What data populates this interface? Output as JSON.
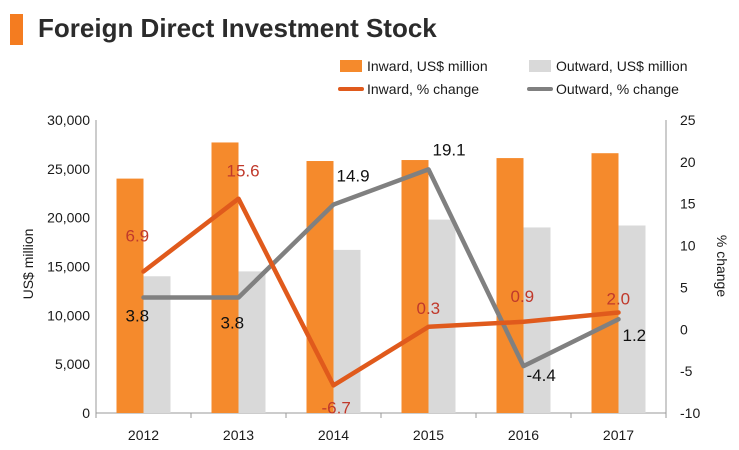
{
  "header": {
    "title": "Foreign Direct Investment Stock",
    "accent_color": "#f47c20"
  },
  "colors": {
    "inward_bar": "#f58a2c",
    "outward_bar": "#d9d9d9",
    "inward_line": "#e05a1c",
    "outward_line": "#808080",
    "inward_label": "#c0392b",
    "outward_label": "#111111"
  },
  "chart_data": {
    "type": "bar",
    "categories": [
      "2012",
      "2013",
      "2014",
      "2015",
      "2016",
      "2017"
    ],
    "series": [
      {
        "name": "Inward, US$ million",
        "kind": "bar",
        "axis": "left",
        "values": [
          24000,
          27700,
          25800,
          25900,
          26100,
          26600
        ]
      },
      {
        "name": "Outward, US$ million",
        "kind": "bar",
        "axis": "left",
        "values": [
          14000,
          14500,
          16700,
          19800,
          19000,
          19200
        ]
      },
      {
        "name": "Inward, % change",
        "kind": "line",
        "axis": "right",
        "values": [
          6.9,
          15.6,
          -6.7,
          0.3,
          0.9,
          2.0
        ],
        "labels": [
          "6.9",
          "15.6",
          "-6.7",
          "0.3",
          "0.9",
          "2.0"
        ]
      },
      {
        "name": "Outward, % change",
        "kind": "line",
        "axis": "right",
        "values": [
          3.8,
          3.8,
          14.9,
          19.1,
          -4.4,
          1.2
        ],
        "labels": [
          "3.8",
          "3.8",
          "14.9",
          "19.1",
          "-4.4",
          "1.2"
        ]
      }
    ],
    "ylabel": "US$ million",
    "y2label": "% change",
    "ylim": [
      0,
      30000
    ],
    "y2lim": [
      -10,
      25
    ],
    "yticks": [
      "0",
      "5,000",
      "10,000",
      "15,000",
      "20,000",
      "25,000",
      "30,000"
    ],
    "y2ticks": [
      "-10",
      "-5",
      "0",
      "5",
      "10",
      "15",
      "20",
      "25"
    ],
    "grid": false,
    "legend_position": "top-right"
  }
}
